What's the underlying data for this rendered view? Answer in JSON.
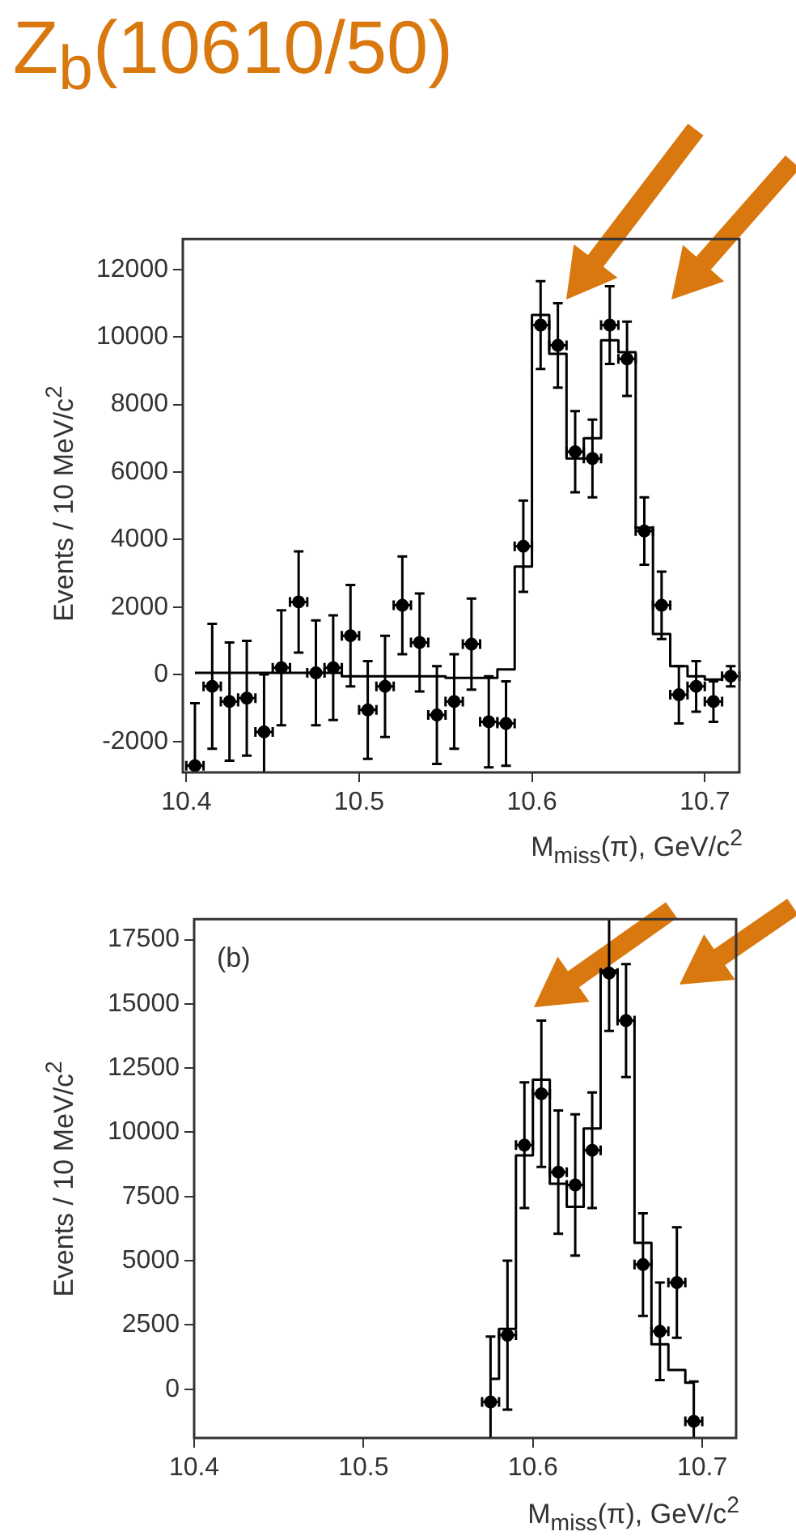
{
  "chart_data": [
    {
      "type": "scatter",
      "title": "Z$_{b}$(10610/50)",
      "xlabel": "M$_{miss}$(π), GeV/c$^{2}$",
      "ylabel": "Events / 10 MeV/c$^{2}$",
      "xlim": [
        10.398,
        10.72
      ],
      "xticks": [
        10.4,
        10.5,
        10.6,
        10.7
      ],
      "ylim": [
        -2900,
        12900
      ],
      "yticks": [
        -2000,
        0,
        2000,
        4000,
        6000,
        8000,
        10000,
        12000
      ],
      "grid": false,
      "legend": false,
      "series": [
        {
          "type": "scatter",
          "marker": "circle",
          "color": "#000000",
          "x": [
            10.405,
            10.415,
            10.425,
            10.435,
            10.445,
            10.455,
            10.465,
            10.475,
            10.485,
            10.495,
            10.505,
            10.515,
            10.525,
            10.535,
            10.545,
            10.555,
            10.565,
            10.575,
            10.585,
            10.595,
            10.605,
            10.615,
            10.625,
            10.635,
            10.645,
            10.655,
            10.665,
            10.675,
            10.685,
            10.695,
            10.705,
            10.715
          ],
          "values": [
            -2700,
            -350,
            -800,
            -700,
            -1700,
            200,
            2150,
            50,
            200,
            1150,
            -1050,
            -350,
            2050,
            950,
            -1200,
            -800,
            900,
            -1400,
            -1450,
            3800,
            10350,
            9750,
            6600,
            6400,
            10350,
            9350,
            4250,
            2050,
            -600,
            -350,
            -800,
            -50
          ],
          "errors": [
            1850,
            1850,
            1750,
            1700,
            1700,
            1700,
            1500,
            1550,
            1550,
            1500,
            1450,
            1500,
            1450,
            1450,
            1450,
            1400,
            1350,
            1350,
            1250,
            1350,
            1300,
            1250,
            1200,
            1150,
            1150,
            1100,
            1000,
            1000,
            850,
            750,
            600,
            300
          ],
          "xerrors": [
            0.005,
            0.005,
            0.005,
            0.005,
            0.005,
            0.005,
            0.005,
            0.005,
            0.005,
            0.005,
            0.005,
            0.005,
            0.005,
            0.005,
            0.005,
            0.005,
            0.005,
            0.005,
            0.005,
            0.005,
            0.005,
            0.005,
            0.005,
            0.005,
            0.005,
            0.005,
            0.005,
            0.005,
            0.005,
            0.005,
            0.005,
            0.005
          ]
        },
        {
          "type": "step",
          "marker": "none",
          "color": "#000000",
          "x": [
            10.405,
            10.415,
            10.425,
            10.435,
            10.445,
            10.455,
            10.465,
            10.475,
            10.485,
            10.495,
            10.505,
            10.515,
            10.525,
            10.535,
            10.545,
            10.555,
            10.565,
            10.575,
            10.585,
            10.595,
            10.605,
            10.615,
            10.625,
            10.635,
            10.645,
            10.655,
            10.665,
            10.675,
            10.685,
            10.695,
            10.705,
            10.715
          ],
          "values": [
            50,
            50,
            50,
            50,
            50,
            50,
            50,
            50,
            50,
            -50,
            -50,
            -50,
            -50,
            -50,
            -50,
            -100,
            -100,
            -100,
            150,
            3200,
            10650,
            9500,
            6400,
            7000,
            9900,
            9550,
            4350,
            1200,
            250,
            -50,
            -150,
            -50
          ]
        }
      ]
    },
    {
      "type": "scatter",
      "xlabel": "M$_{miss}$(π), GeV/c$^{2}$",
      "ylabel": "Events / 10 MeV/c$^{2}$",
      "annotations": [
        "(b)"
      ],
      "xlim": [
        10.4,
        10.72
      ],
      "xticks": [
        10.4,
        10.5,
        10.6,
        10.7
      ],
      "ylim": [
        -1900,
        18300
      ],
      "yticks": [
        0,
        2500,
        5000,
        7500,
        10000,
        12500,
        15000,
        17500
      ],
      "grid": false,
      "legend": false,
      "series": [
        {
          "type": "scatter",
          "marker": "circle",
          "color": "#000000",
          "x": [
            10.575,
            10.585,
            10.595,
            10.605,
            10.615,
            10.625,
            10.635,
            10.645,
            10.655,
            10.665,
            10.675,
            10.685,
            10.695
          ],
          "values": [
            -500,
            2100,
            9500,
            11500,
            8450,
            7950,
            9300,
            16200,
            14350,
            4850,
            2250,
            4150,
            -1250
          ],
          "errors": [
            2550,
            2900,
            2450,
            2850,
            2400,
            2750,
            2250,
            2250,
            2200,
            2000,
            1900,
            2150,
            1550
          ],
          "xerrors": [
            0.005,
            0.005,
            0.005,
            0.005,
            0.005,
            0.005,
            0.005,
            0.005,
            0.005,
            0.005,
            0.005,
            0.005,
            0.005
          ]
        },
        {
          "type": "step",
          "marker": "none",
          "color": "#000000",
          "x": [
            10.575,
            10.585,
            10.595,
            10.605,
            10.615,
            10.625,
            10.635,
            10.645,
            10.655,
            10.665,
            10.675,
            10.685,
            10.695
          ],
          "values": [
            400,
            2350,
            9100,
            12050,
            8000,
            7100,
            10150,
            16300,
            14350,
            5700,
            1750,
            750,
            250
          ]
        }
      ]
    }
  ]
}
